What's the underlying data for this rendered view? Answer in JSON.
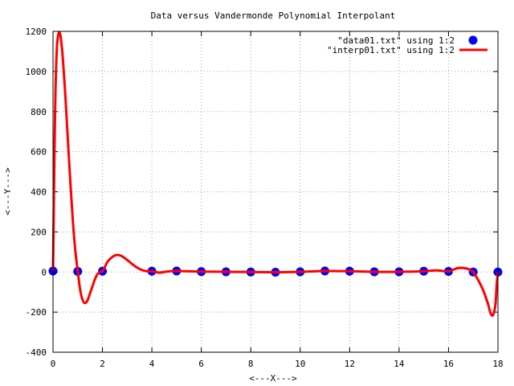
{
  "chart_data": {
    "type": "line",
    "title": "Data versus Vandermonde Polynomial Interpolant",
    "xlabel": "<---X--->",
    "ylabel": "<---Y--->",
    "xlim": [
      0,
      18
    ],
    "ylim": [
      -400,
      1200
    ],
    "x_ticks": [
      0,
      2,
      4,
      6,
      8,
      10,
      12,
      14,
      16,
      18
    ],
    "y_ticks": [
      -400,
      -200,
      0,
      200,
      400,
      600,
      800,
      1000,
      1200
    ],
    "x_tick_labels": [
      "0",
      "2",
      "4",
      "6",
      "8",
      "10",
      "12",
      "14",
      "16",
      "18"
    ],
    "y_tick_labels": [
      "-400",
      "-200",
      "0",
      "200",
      "400",
      "600",
      "800",
      "1000",
      "1200"
    ],
    "grid": true,
    "legend_position": "top-right",
    "series": [
      {
        "name": "\"data01.txt\" using 1:2",
        "type": "scatter",
        "color": "#0000ff",
        "x": [
          0,
          1,
          2,
          4,
          5,
          6,
          7,
          8,
          9,
          10,
          11,
          12,
          13,
          14,
          15,
          16,
          17,
          18
        ],
        "y": [
          5,
          3,
          4,
          4,
          5,
          2,
          1,
          0,
          -1,
          1,
          5,
          4,
          1,
          1,
          4,
          3,
          0,
          0
        ]
      },
      {
        "name": "\"interp01.txt\" using 1:2",
        "type": "line",
        "color": "#ff0000",
        "x": [
          0,
          0.03,
          0.06,
          0.1,
          0.15,
          0.2,
          0.25,
          0.3,
          0.35,
          0.4,
          0.5,
          0.6,
          0.7,
          0.8,
          0.9,
          1.0,
          1.1,
          1.2,
          1.3,
          1.4,
          1.5,
          1.6,
          1.7,
          1.8,
          1.9,
          2.0,
          2.1,
          2.2,
          2.4,
          2.6,
          2.8,
          3.0,
          3.2,
          3.4,
          3.6,
          3.8,
          4.0,
          4.3,
          4.6,
          5.0,
          6.0,
          7.0,
          8.0,
          9.0,
          10.0,
          11.0,
          12.0,
          13.0,
          14.0,
          15.0,
          15.5,
          16.0,
          16.2,
          16.4,
          16.6,
          16.8,
          16.9,
          17.0,
          17.2,
          17.4,
          17.6,
          17.7,
          17.8,
          17.9,
          17.95,
          18.0
        ],
        "y": [
          5,
          300,
          600,
          900,
          1100,
          1175,
          1195,
          1180,
          1130,
          1060,
          880,
          660,
          450,
          260,
          110,
          5,
          -90,
          -140,
          -155,
          -140,
          -105,
          -70,
          -35,
          -10,
          0,
          4,
          25,
          50,
          75,
          85,
          78,
          60,
          40,
          22,
          10,
          4,
          4,
          -3,
          2,
          5,
          2,
          1,
          0,
          -1,
          1,
          5,
          4,
          1,
          1,
          4,
          8,
          3,
          12,
          20,
          20,
          15,
          8,
          0,
          -40,
          -90,
          -160,
          -205,
          -215,
          -160,
          -60,
          0
        ]
      }
    ]
  }
}
